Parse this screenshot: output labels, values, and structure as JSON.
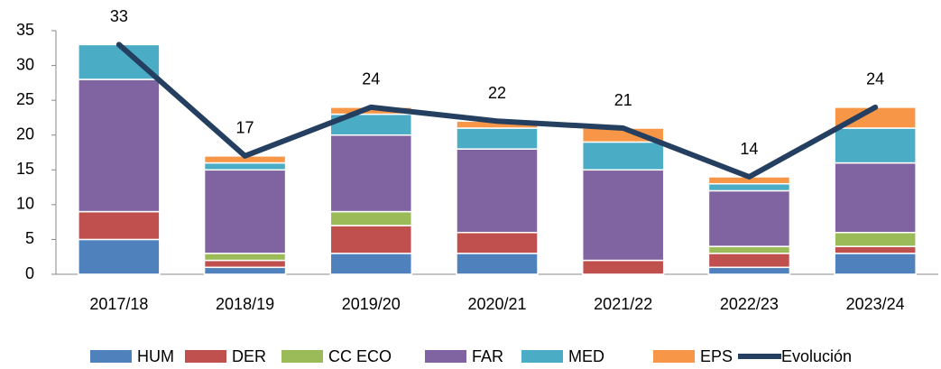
{
  "chart_data": {
    "type": "stacked_bar_line",
    "categories": [
      "2017/18",
      "2018/19",
      "2019/20",
      "2020/21",
      "2021/22",
      "2022/23",
      "2023/24"
    ],
    "series": [
      {
        "name": "HUM",
        "color": "#4f81bd",
        "values": [
          5,
          1,
          3,
          3,
          0,
          1,
          3
        ]
      },
      {
        "name": "DER",
        "color": "#c0504d",
        "values": [
          4,
          1,
          4,
          3,
          2,
          2,
          1
        ]
      },
      {
        "name": "CC ECO",
        "color": "#9bbb59",
        "values": [
          0,
          1,
          2,
          0,
          0,
          1,
          2
        ]
      },
      {
        "name": "FAR",
        "color": "#8064a2",
        "values": [
          19,
          12,
          11,
          12,
          13,
          8,
          10
        ]
      },
      {
        "name": "MED",
        "color": "#4bacc6",
        "values": [
          5,
          1,
          3,
          3,
          4,
          1,
          5
        ]
      },
      {
        "name": "EPS",
        "color": "#f79646",
        "values": [
          0,
          1,
          1,
          1,
          2,
          1,
          3
        ]
      }
    ],
    "line": {
      "name": "Evolución",
      "color": "#243f60",
      "values": [
        33,
        17,
        24,
        22,
        21,
        14,
        24
      ]
    },
    "ylim": [
      0,
      35
    ],
    "yticks": [
      0,
      5,
      10,
      15,
      20,
      25,
      30,
      35
    ],
    "grid": false,
    "legend": "bottom"
  }
}
